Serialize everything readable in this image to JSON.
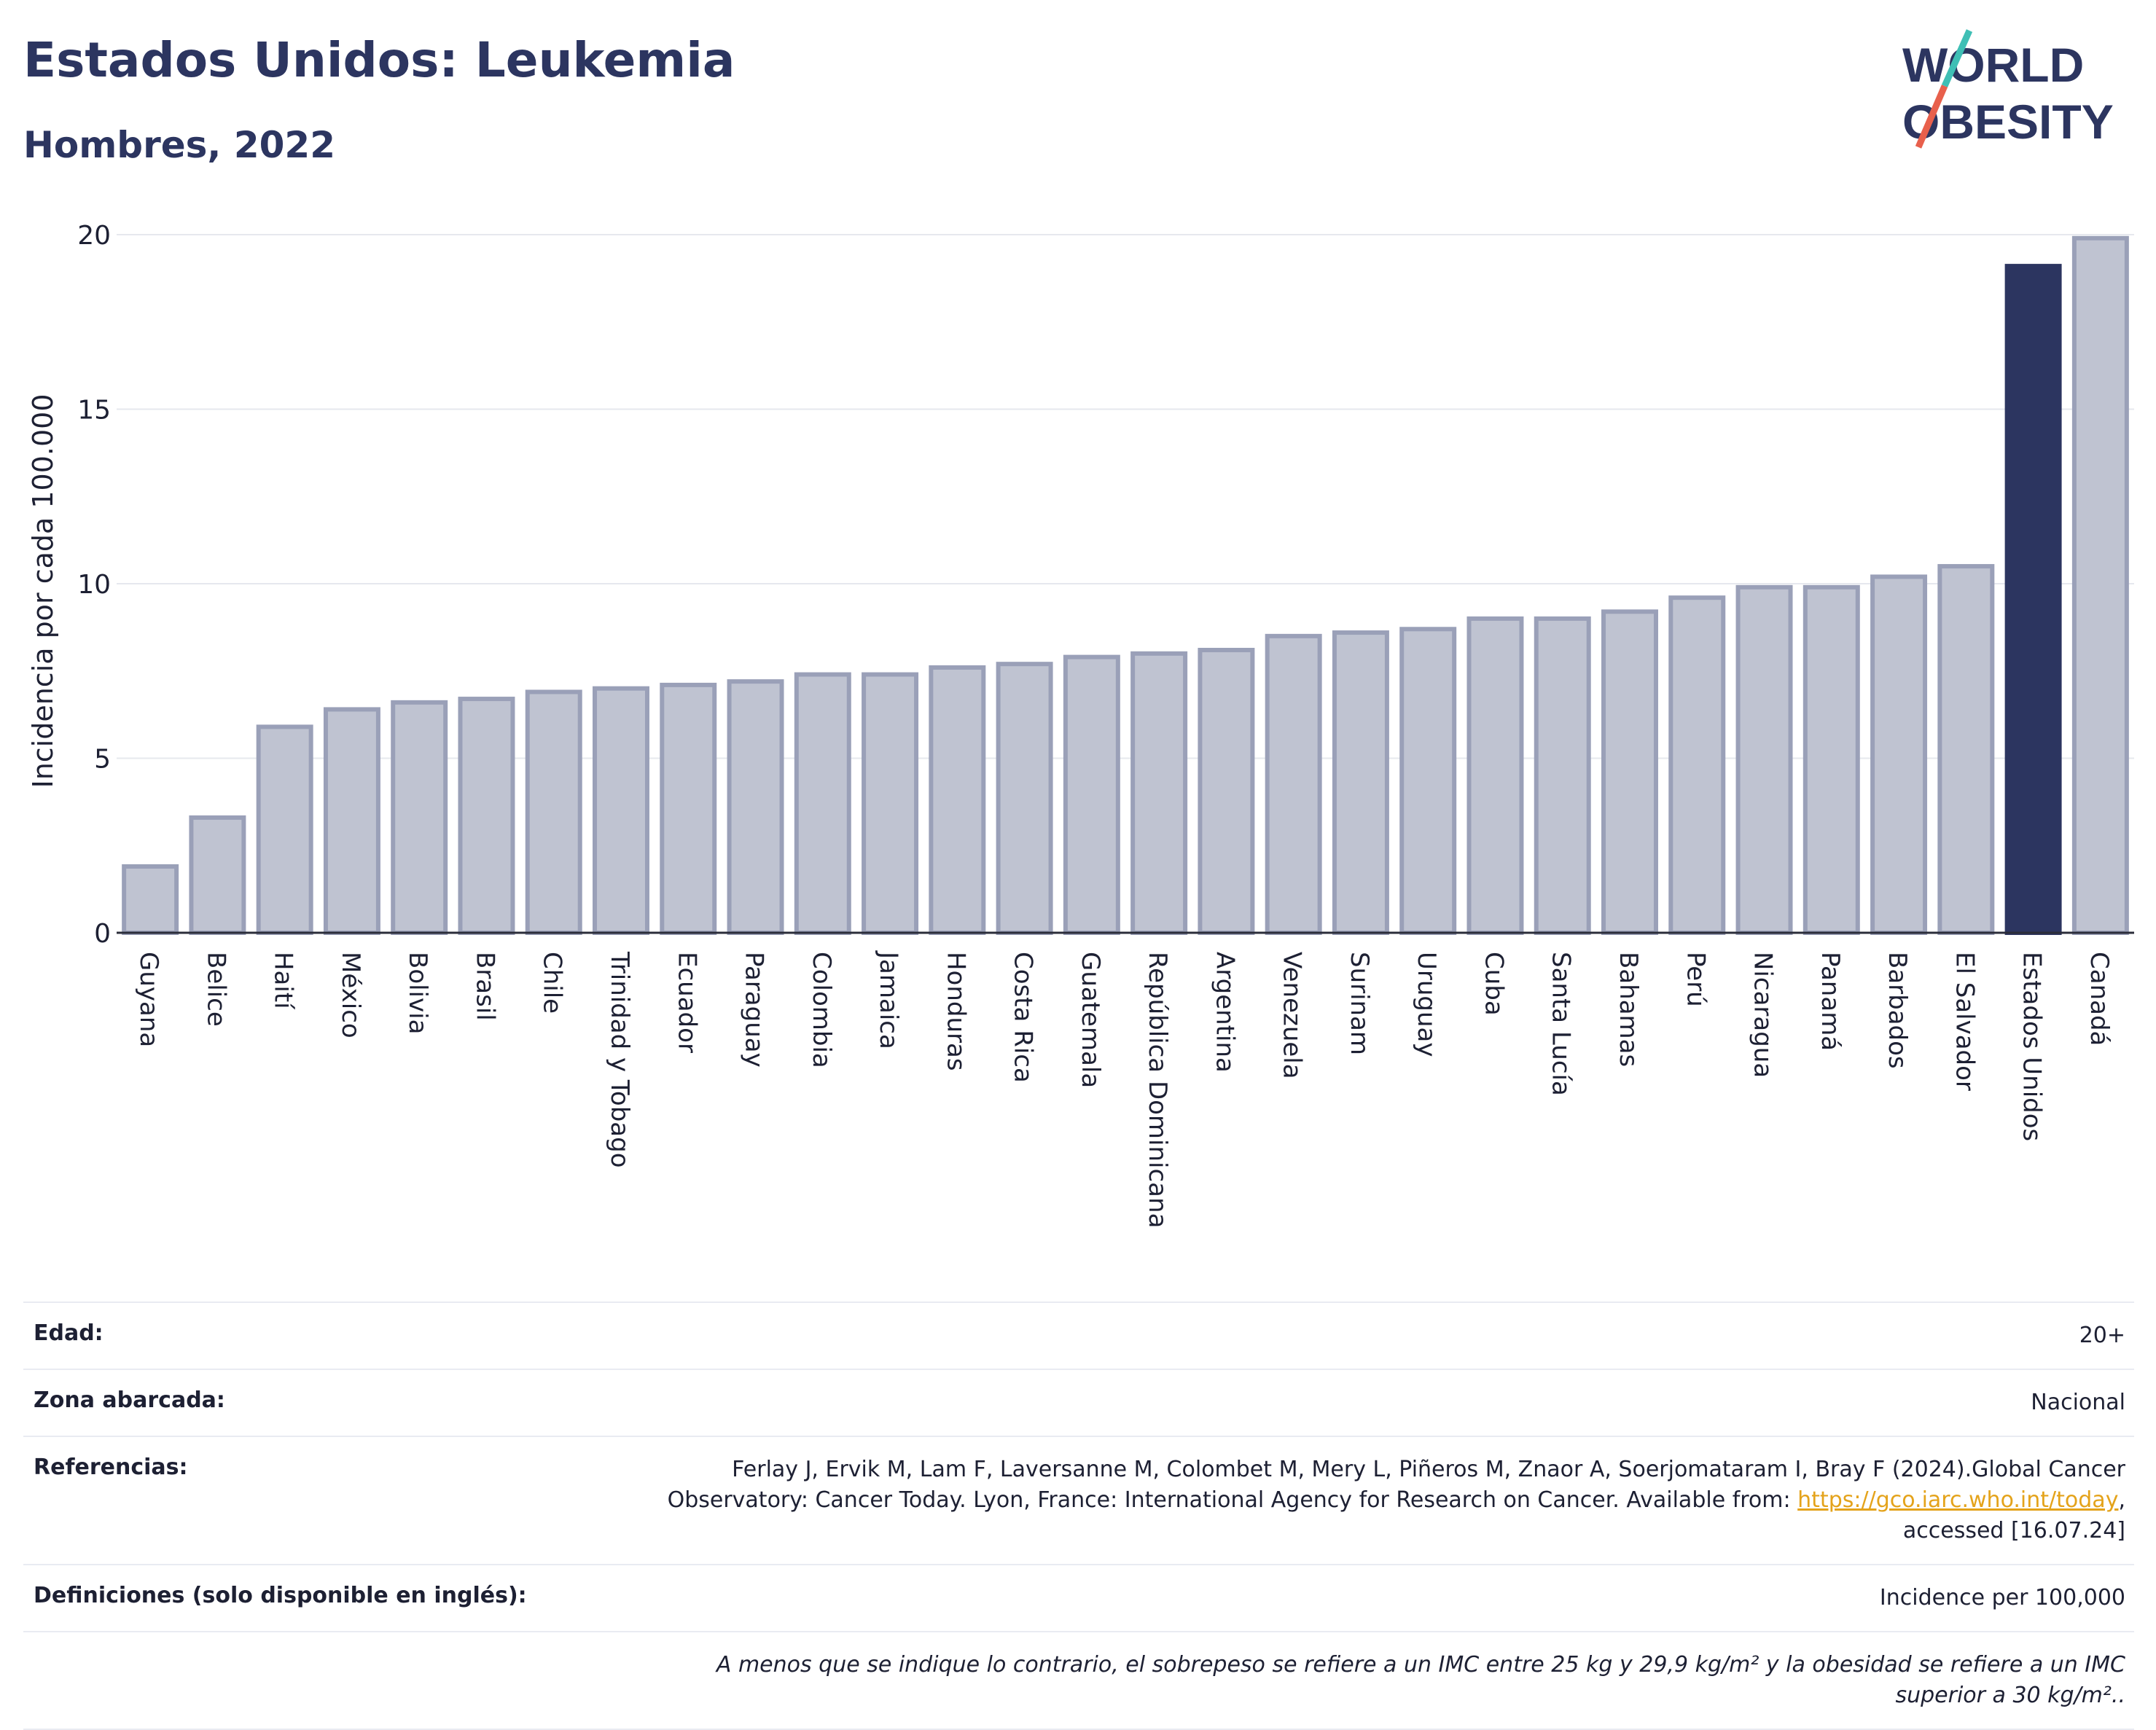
{
  "header": {
    "title": "Estados Unidos: Leukemia",
    "subtitle": "Hombres, 2022"
  },
  "logo": {
    "line1": "WORLD",
    "line2": "OBESITY",
    "colors": {
      "text": "#2c3560",
      "slash_top": "#3fbfb5",
      "slash_bottom": "#e8604c"
    }
  },
  "chart_data": {
    "type": "bar",
    "ylabel": "Incidencia por cada 100.000",
    "ylim": [
      0,
      20
    ],
    "yticks": [
      "0",
      "5",
      "10",
      "15",
      "20"
    ],
    "grid": true,
    "categories": [
      "Guyana",
      "Belice",
      "Haití",
      "México",
      "Bolivia",
      "Brasil",
      "Chile",
      "Trinidad y Tobago",
      "Ecuador",
      "Paraguay",
      "Colombia",
      "Jamaica",
      "Honduras",
      "Costa Rica",
      "Guatemala",
      "República Dominicana",
      "Argentina",
      "Venezuela",
      "Surinam",
      "Uruguay",
      "Cuba",
      "Santa Lucía",
      "Bahamas",
      "Perú",
      "Nicaragua",
      "Panamá",
      "Barbados",
      "El Salvador",
      "Estados Unidos",
      "Canadá"
    ],
    "values": [
      1.9,
      3.3,
      5.9,
      6.4,
      6.6,
      6.7,
      6.9,
      7.0,
      7.1,
      7.2,
      7.4,
      7.4,
      7.6,
      7.7,
      7.9,
      8.0,
      8.1,
      8.5,
      8.6,
      8.7,
      9.0,
      9.0,
      9.2,
      9.6,
      9.9,
      9.9,
      10.2,
      10.5,
      19.1,
      19.9
    ],
    "highlight": "Estados Unidos",
    "colors": {
      "bar": "#bfc3d1",
      "bar_edge": "#9aa0b8",
      "highlight": "#2c3560"
    }
  },
  "meta": {
    "edad_label": "Edad:",
    "edad_value": "20+",
    "zona_label": "Zona abarcada:",
    "zona_value": "Nacional",
    "ref_label": "Referencias:",
    "ref_text_1": "Ferlay J, Ervik M, Lam F, Laversanne M, Colombet M, Mery L, Piñeros M, Znaor A, Soerjomataram I, Bray F (2024).Global Cancer Observatory: Cancer Today. Lyon, France: International Agency for Research on Cancer. Available from: ",
    "ref_link": "https://gco.iarc.who.int/today",
    "ref_text_2": ", accessed [16.07.24]",
    "def_label": "Definiciones (solo disponible en inglés):",
    "def_value": "Incidence per 100,000",
    "note": "A menos que se indique lo contrario, el sobrepeso se refiere a un IMC entre 25 kg y 29,9 kg/m² y la obesidad se refiere a un IMC superior a 30 kg/m²..",
    "link_color": "#e4a31b"
  }
}
